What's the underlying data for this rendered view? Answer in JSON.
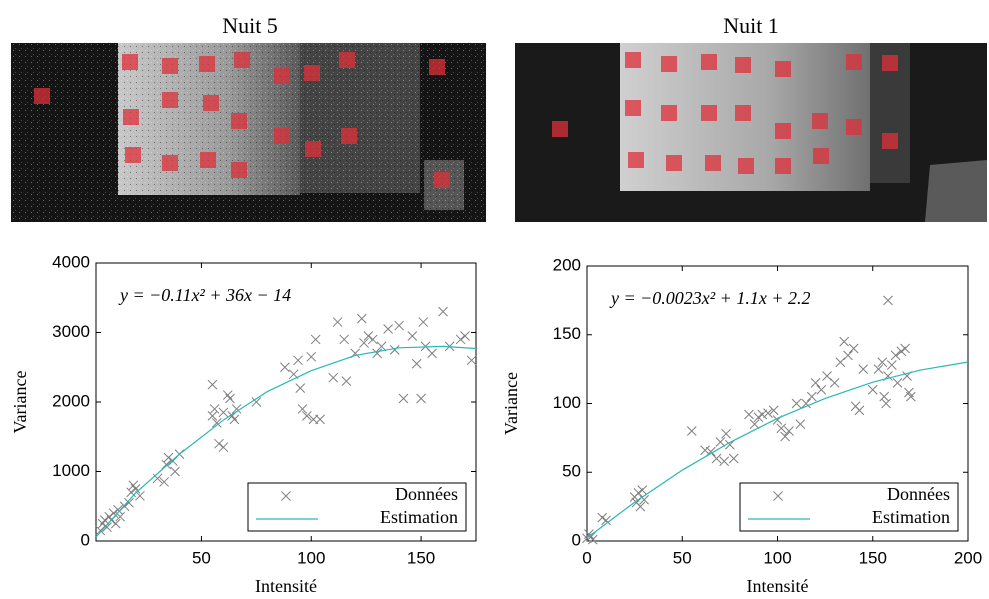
{
  "chart_data": [
    {
      "type": "scatter",
      "title": "Nuit 5",
      "annotation": "y = −0.11x² + 36x − 14",
      "xlabel": "Intensité",
      "ylabel": "Variance",
      "xlim": [
        2,
        175
      ],
      "ylim": [
        0,
        4000
      ],
      "xticks": [
        50,
        100,
        150
      ],
      "yticks": [
        0,
        1000,
        2000,
        3000,
        4000
      ],
      "legend": "lower right",
      "series": [
        {
          "name": "Données",
          "color": "#7f7f7f",
          "style": "markers",
          "x": [
            4,
            5,
            6,
            7,
            8,
            9,
            10,
            11,
            12,
            13,
            15,
            17,
            18,
            19,
            20,
            22,
            30,
            33,
            34,
            35,
            37,
            38,
            40,
            55,
            55,
            56,
            57,
            58,
            60,
            60,
            62,
            63,
            64,
            65,
            66,
            75,
            88,
            92,
            94,
            95,
            96,
            98,
            100,
            101,
            102,
            104,
            110,
            112,
            115,
            116,
            120,
            123,
            124,
            126,
            128,
            130,
            132,
            135,
            138,
            140,
            142,
            146,
            148,
            150,
            151,
            152,
            155,
            160,
            163,
            168,
            170,
            173
          ],
          "values": [
            150,
            250,
            300,
            200,
            350,
            300,
            400,
            250,
            450,
            350,
            500,
            550,
            700,
            800,
            750,
            650,
            900,
            850,
            1100,
            1200,
            1150,
            1000,
            1250,
            2250,
            1800,
            1900,
            1700,
            1400,
            1350,
            1850,
            2100,
            2050,
            1800,
            1750,
            1900,
            2000,
            2500,
            2400,
            2600,
            2200,
            1900,
            1800,
            2650,
            1750,
            2900,
            1750,
            2350,
            3150,
            2900,
            2300,
            2700,
            3200,
            2850,
            2950,
            2900,
            2700,
            2800,
            3050,
            2750,
            3100,
            2050,
            2950,
            2550,
            2050,
            3150,
            2800,
            2700,
            3300,
            2800,
            2900,
            2950,
            2600
          ]
        },
        {
          "name": "Estimation",
          "color": "#2ab7b7",
          "style": "line",
          "x": [
            2,
            20,
            40,
            60,
            80,
            100,
            120,
            140,
            160,
            175
          ],
          "values": [
            58,
            690,
            1250,
            1740,
            2150,
            2450,
            2670,
            2780,
            2800,
            2770
          ]
        }
      ]
    },
    {
      "type": "scatter",
      "title": "Nuit 1",
      "annotation": "y = −0.0023x² + 1.1x + 2.2",
      "xlabel": "Intensité",
      "ylabel": "Variance",
      "xlim": [
        0,
        200
      ],
      "ylim": [
        0,
        200
      ],
      "xticks": [
        0,
        50,
        100,
        150,
        200
      ],
      "yticks": [
        0,
        50,
        100,
        150,
        200
      ],
      "legend": "lower right",
      "series": [
        {
          "name": "Données",
          "color": "#7f7f7f",
          "style": "markers",
          "x": [
            0,
            1,
            2,
            3,
            8,
            10,
            25,
            26,
            27,
            28,
            29,
            30,
            55,
            62,
            65,
            68,
            70,
            72,
            73,
            75,
            77,
            85,
            88,
            90,
            92,
            95,
            98,
            100,
            102,
            104,
            106,
            110,
            112,
            115,
            118,
            120,
            123,
            126,
            130,
            133,
            135,
            137,
            140,
            141,
            143,
            145,
            150,
            153,
            155,
            156,
            157,
            158,
            160,
            162,
            163,
            165,
            167,
            168,
            169,
            170,
            158
          ],
          "values": [
            2,
            5,
            3,
            1,
            17,
            15,
            32,
            28,
            35,
            25,
            37,
            30,
            80,
            66,
            65,
            60,
            72,
            58,
            78,
            70,
            60,
            92,
            85,
            90,
            92,
            93,
            95,
            88,
            82,
            76,
            80,
            100,
            85,
            100,
            105,
            115,
            110,
            120,
            115,
            130,
            145,
            135,
            140,
            98,
            95,
            125,
            110,
            125,
            130,
            105,
            100,
            120,
            128,
            135,
            115,
            138,
            140,
            120,
            108,
            105,
            175
          ]
        },
        {
          "name": "Estimation",
          "color": "#2ab7b7",
          "style": "line",
          "x": [
            0,
            25,
            50,
            75,
            100,
            125,
            150,
            175,
            200
          ],
          "values": [
            2.2,
            28.2,
            51.5,
            71.7,
            89.2,
            103.7,
            115.5,
            124.3,
            130.2
          ]
        }
      ]
    }
  ]
}
